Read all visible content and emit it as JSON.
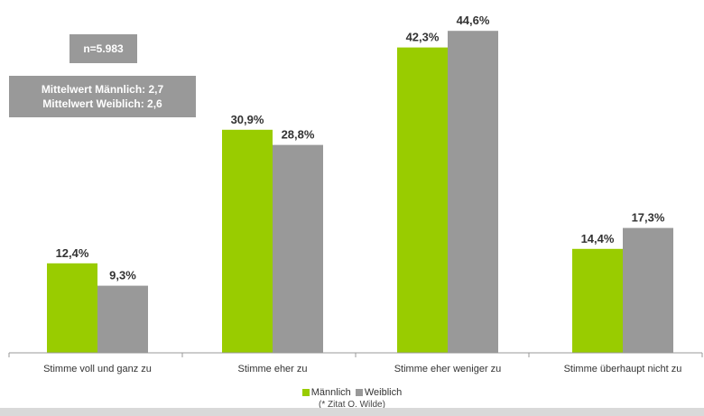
{
  "sample_box": "n=5.983",
  "mean_box": {
    "male": "Mittelwert Männlich: 2,7",
    "female": "Mittelwert Weiblich: 2,6"
  },
  "note": "(* Zitat O. Wilde)",
  "colors": {
    "male": "#99cc00",
    "female": "#999999"
  },
  "chart_data": {
    "type": "bar",
    "categories": [
      "Stimme voll und ganz zu",
      "Stimme eher zu",
      "Stimme eher weniger zu",
      "Stimme überhaupt nicht zu"
    ],
    "series": [
      {
        "name": "Männlich",
        "values": [
          12.4,
          30.9,
          42.3,
          14.4
        ],
        "labels": [
          "12,4%",
          "30,9%",
          "42,3%",
          "14,4%"
        ]
      },
      {
        "name": "Weiblich",
        "values": [
          9.3,
          28.8,
          44.6,
          17.3
        ],
        "labels": [
          "9,3%",
          "28,8%",
          "44,6%",
          "17,3%"
        ]
      }
    ],
    "ylim": [
      0,
      48
    ],
    "grid": false,
    "legend_position": "bottom"
  }
}
